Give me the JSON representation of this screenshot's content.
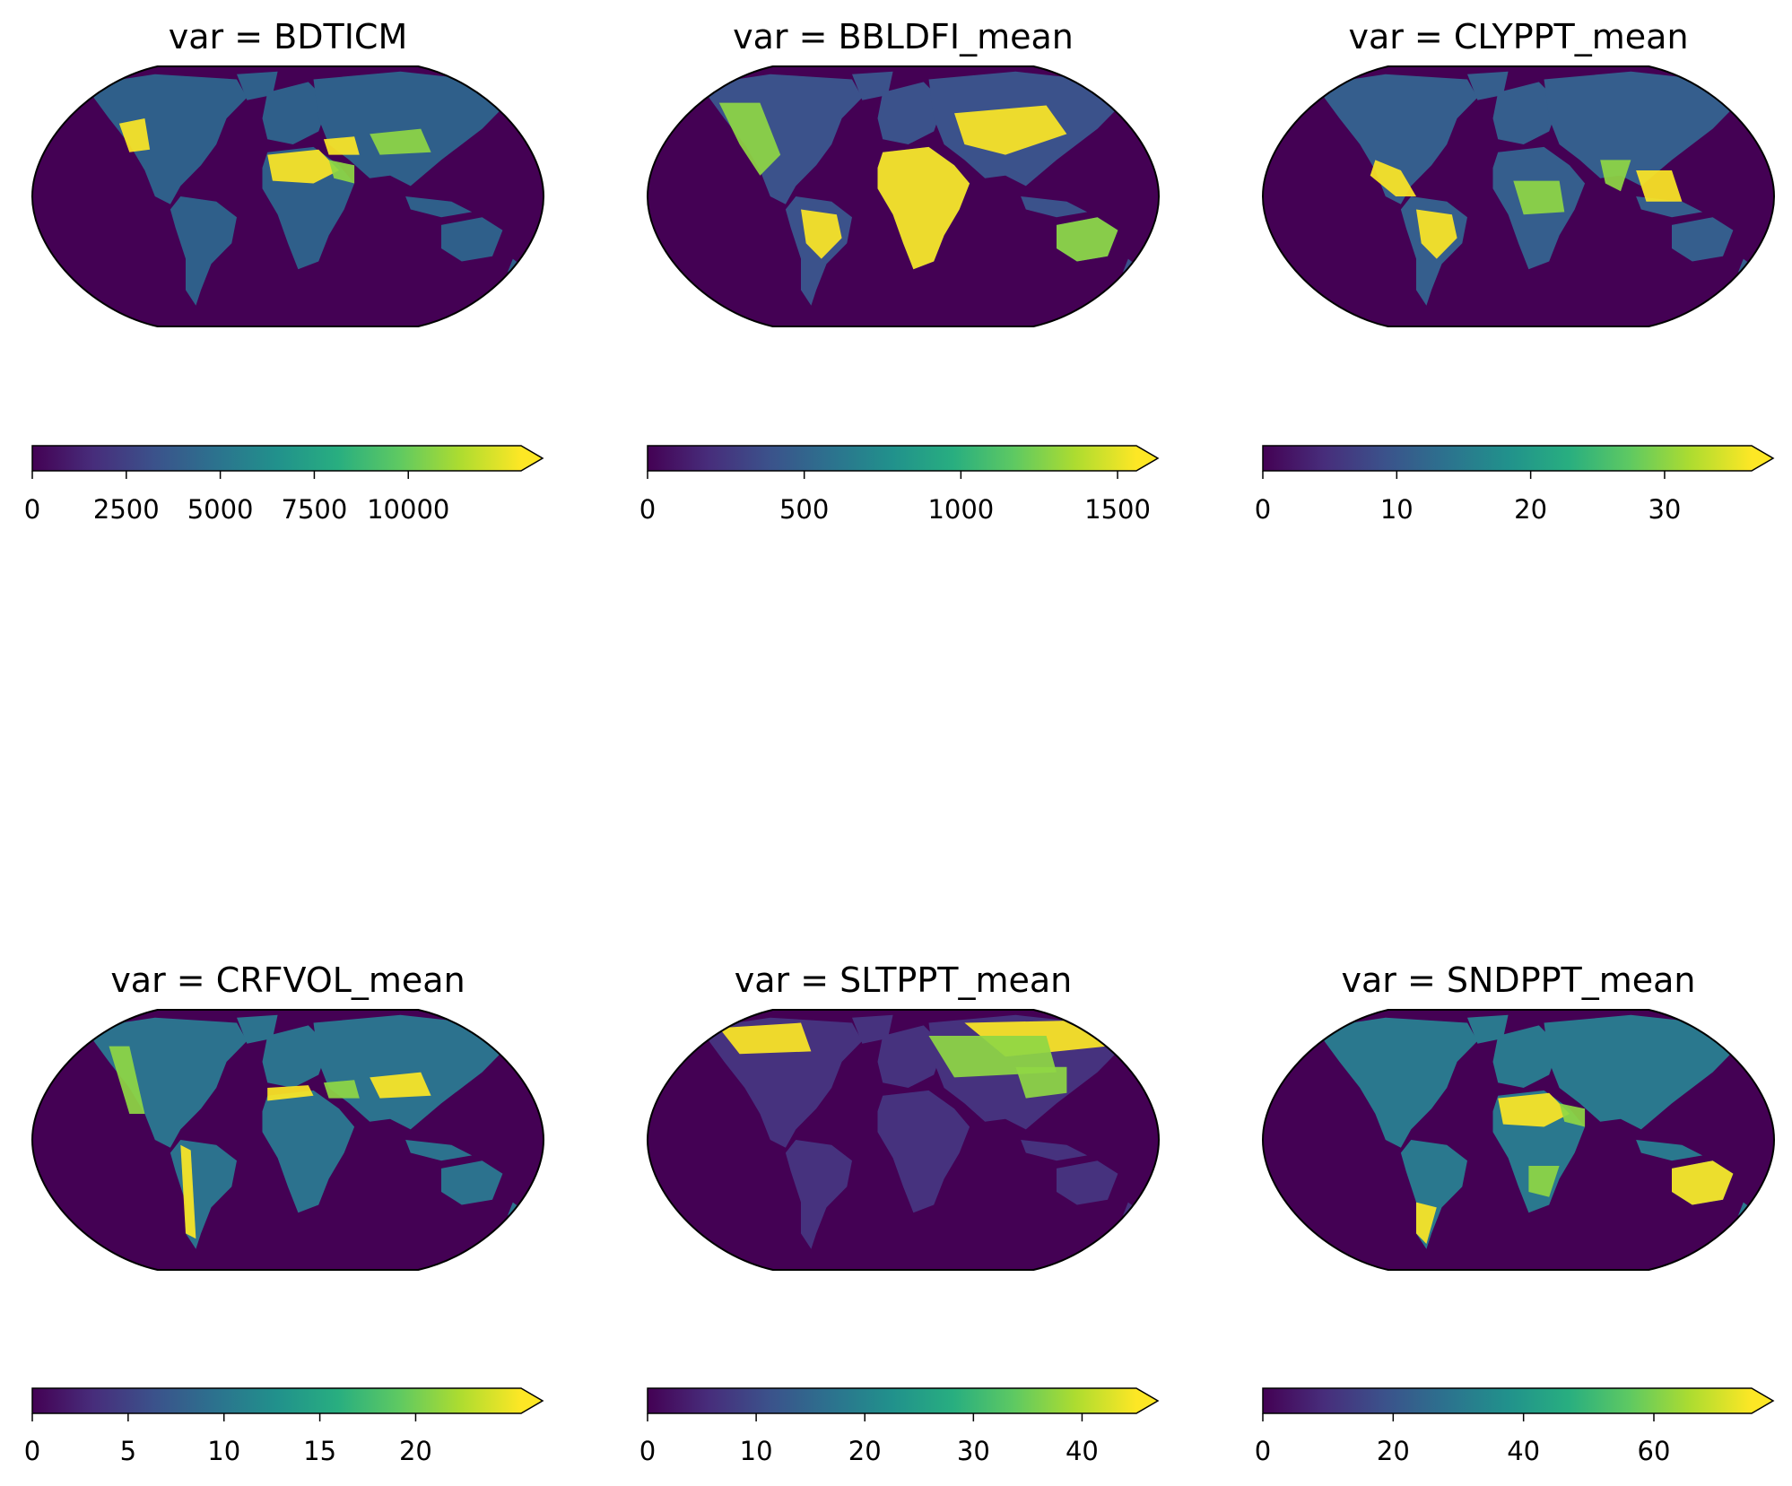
{
  "colormap": {
    "name": "viridis",
    "stops": [
      "#440154",
      "#472d7b",
      "#3b528b",
      "#2c728e",
      "#21918c",
      "#28ae80",
      "#5ec962",
      "#addc30",
      "#fde725"
    ],
    "ocean_color": "#440154"
  },
  "panels": [
    {
      "title": "var = BDTICM",
      "colorbar": {
        "min": 0,
        "max": 13000,
        "extend": "max",
        "ticks": [
          0,
          2500,
          5000,
          7500,
          10000
        ],
        "tick_labels": [
          "0",
          "2500",
          "5000",
          "7500",
          "10000"
        ]
      },
      "highlights": [
        "sahara",
        "arabia",
        "middle-east",
        "tibet",
        "western-us"
      ]
    },
    {
      "title": "var = BBLDFI_mean",
      "colorbar": {
        "min": 0,
        "max": 1560,
        "extend": "max",
        "ticks": [
          0,
          500,
          1000,
          1500
        ],
        "tick_labels": [
          "0",
          "500",
          "1000",
          "1500"
        ]
      },
      "highlights": [
        "africa",
        "australia",
        "south-america",
        "north-america-west",
        "asia"
      ]
    },
    {
      "title": "var = CLYPPT_mean",
      "colorbar": {
        "min": 0,
        "max": 36.5,
        "extend": "max",
        "ticks": [
          0,
          10,
          20,
          30
        ],
        "tick_labels": [
          "0",
          "10",
          "20",
          "30"
        ]
      },
      "highlights": [
        "central-america",
        "india",
        "southeast-asia",
        "central-africa",
        "south-america"
      ]
    },
    {
      "title": "var = CRFVOL_mean",
      "colorbar": {
        "min": 0,
        "max": 25.5,
        "extend": "max",
        "ticks": [
          0,
          5,
          10,
          15,
          20
        ],
        "tick_labels": [
          "0",
          "5",
          "10",
          "15",
          "20"
        ]
      },
      "highlights": [
        "andes",
        "rockies",
        "tibet",
        "middle-east",
        "north-africa-rim"
      ]
    },
    {
      "title": "var = SLTPPT_mean",
      "colorbar": {
        "min": 0,
        "max": 45,
        "extend": "max",
        "ticks": [
          0,
          10,
          20,
          30,
          40
        ],
        "tick_labels": [
          "0",
          "10",
          "20",
          "30",
          "40"
        ]
      },
      "highlights": [
        "siberia",
        "eurasia",
        "northern-canada",
        "china"
      ]
    },
    {
      "title": "var = SNDPPT_mean",
      "colorbar": {
        "min": 0,
        "max": 75,
        "extend": "max",
        "ticks": [
          0,
          20,
          40,
          60
        ],
        "tick_labels": [
          "0",
          "20",
          "40",
          "60"
        ]
      },
      "highlights": [
        "sahara",
        "arabia",
        "australia",
        "southern-africa",
        "patagonia"
      ]
    }
  ]
}
